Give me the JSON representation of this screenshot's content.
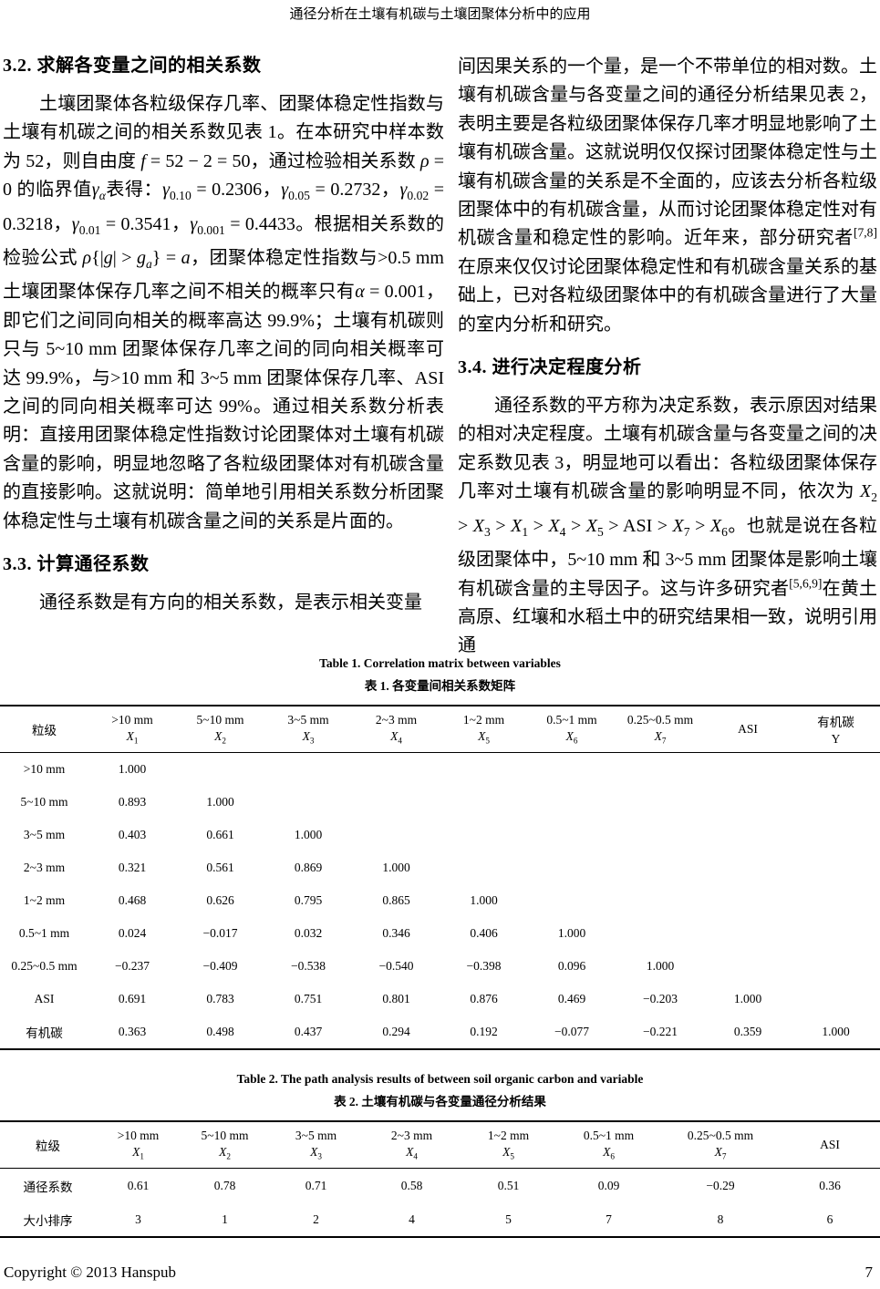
{
  "header": {
    "title": "通径分析在土壤有机碳与土壤团聚体分析中的应用"
  },
  "footer": {
    "copyright": "Copyright © 2013 Hanspub",
    "page_number": "7"
  },
  "sections": {
    "s32": {
      "heading": "3.2. 求解各变量之间的相关系数",
      "para": "土壤团聚体各粒级保存几率、团聚体稳定性指数与土壤有机碳之间的相关系数见表 1。在本研究中样本数为 52，则自由度 <i>f</i> = 52 − 2 = 50，通过检验相关系数 <i>ρ</i> = 0 的临界值<i>γ<sub>α</sub></i>表得：<i>γ</i><sub>0.10</sub> = 0.2306，<i>γ</i><sub>0.05</sub> = 0.2732，<i>γ</i><sub>0.02</sub> = 0.3218，<i>γ</i><sub>0.01</sub> = 0.3541，<i>γ</i><sub>0.001</sub> = 0.4433。根据相关系数的检验公式 <i>ρ</i>{|<i>g</i>| > <i>g<sub>a</sub></i>} = <i>a</i>，团聚体稳定性指数与>0.5 mm 土壤团聚体保存几率之间不相关的概率只有<i>α</i> = 0.001，即它们之间同向相关的概率高达 99.9%；土壤有机碳则只与 5~10 mm 团聚体保存几率之间的同向相关概率可达 99.9%，与>10 mm 和 3~5 mm 团聚体保存几率、ASI 之间的同向相关概率可达 99%。通过相关系数分析表明：直接用团聚体稳定性指数讨论团聚体对土壤有机碳含量的影响，明显地忽略了各粒级团聚体对有机碳含量的直接影响。这就说明：简单地引用相关系数分析团聚体稳定性与土壤有机碳含量之间的关系是片面的。"
    },
    "s33": {
      "heading": "3.3. 计算通径系数",
      "para": "通径系数是有方向的相关系数，是表示相关变量",
      "para_cont": "间因果关系的一个量，是一个不带单位的相对数。土壤有机碳含量与各变量之间的通径分析结果见表 2，表明主要是各粒级团聚体保存几率才明显地影响了土壤有机碳含量。这就说明仅仅探讨团聚体稳定性与土壤有机碳含量的关系是不全面的，应该去分析各粒级团聚体中的有机碳含量，从而讨论团聚体稳定性对有机碳含量和稳定性的影响。近年来，部分研究者<sup>[7,8]</sup>在原来仅仅讨论团聚体稳定性和有机碳含量关系的基础上，已对各粒级团聚体中的有机碳含量进行了大量的室内分析和研究。"
    },
    "s34": {
      "heading": "3.4. 进行决定程度分析",
      "para": "通径系数的平方称为决定系数，表示原因对结果的相对决定程度。土壤有机碳含量与各变量之间的决定系数见表 3，明显地可以看出：各粒级团聚体保存几率对土壤有机碳含量的影响明显不同，依次为 <i>X</i><sub>2</sub> > <i>X</i><sub>3</sub> > <i>X</i><sub>1</sub> > <i>X</i><sub>4</sub> > <i>X</i><sub>5</sub> > ASI > <i>X</i><sub>7</sub> > <i>X</i><sub>6</sub>。也就是说在各粒级团聚体中，5~10 mm 和 3~5 mm 团聚体是影响土壤有机碳含量的主导因子。这与许多研究者<sup>[5,6,9]</sup>在黄土高原、红壤和水稻土中的研究结果相一致，说明引用通"
    }
  },
  "table1": {
    "caption_en": "Table 1. Correlation matrix between variables",
    "caption_zh": "表 1.  各变量间相关系数矩阵",
    "header_label": "粒级",
    "columns": [
      {
        "line1": ">10 mm",
        "line2_html": "<i>X</i><sub>1</sub>"
      },
      {
        "line1": "5~10 mm",
        "line2_html": "<i>X</i><sub>2</sub>"
      },
      {
        "line1": "3~5 mm",
        "line2_html": "<i>X</i><sub>3</sub>"
      },
      {
        "line1": "2~3 mm",
        "line2_html": "<i>X</i><sub>4</sub>"
      },
      {
        "line1": "1~2 mm",
        "line2_html": "<i>X</i><sub>5</sub>"
      },
      {
        "line1": "0.5~1 mm",
        "line2_html": "<i>X</i><sub>6</sub>"
      },
      {
        "line1": "0.25~0.5 mm",
        "line2_html": "<i>X</i><sub>7</sub>"
      },
      {
        "line1": "ASI"
      },
      {
        "line1": "有机碳",
        "line2_html": "Y"
      }
    ],
    "rows": [
      {
        "label": ">10 mm",
        "values": [
          "1.000"
        ]
      },
      {
        "label": "5~10 mm",
        "values": [
          "0.893",
          "1.000"
        ]
      },
      {
        "label": "3~5 mm",
        "values": [
          "0.403",
          "0.661",
          "1.000"
        ]
      },
      {
        "label": "2~3 mm",
        "values": [
          "0.321",
          "0.561",
          "0.869",
          "1.000"
        ]
      },
      {
        "label": "1~2 mm",
        "values": [
          "0.468",
          "0.626",
          "0.795",
          "0.865",
          "1.000"
        ]
      },
      {
        "label": "0.5~1 mm",
        "values": [
          "0.024",
          "−0.017",
          "0.032",
          "0.346",
          "0.406",
          "1.000"
        ]
      },
      {
        "label": "0.25~0.5 mm",
        "values": [
          "−0.237",
          "−0.409",
          "−0.538",
          "−0.540",
          "−0.398",
          "0.096",
          "1.000"
        ]
      },
      {
        "label": "ASI",
        "values": [
          "0.691",
          "0.783",
          "0.751",
          "0.801",
          "0.876",
          "0.469",
          "−0.203",
          "1.000"
        ]
      },
      {
        "label": "有机碳",
        "values": [
          "0.363",
          "0.498",
          "0.437",
          "0.294",
          "0.192",
          "−0.077",
          "−0.221",
          "0.359",
          "1.000"
        ]
      }
    ]
  },
  "table2": {
    "caption_en": "Table 2. The path analysis results of between soil organic carbon and variable",
    "caption_zh": "表 2.  土壤有机碳与各变量通径分析结果",
    "header_label": "粒级",
    "columns": [
      {
        "line1": ">10 mm",
        "line2_html": "<i>X</i><sub>1</sub>"
      },
      {
        "line1": "5~10 mm",
        "line2_html": "<i>X</i><sub>2</sub>"
      },
      {
        "line1": "3~5 mm",
        "line2_html": "<i>X</i><sub>3</sub>"
      },
      {
        "line1": "2~3 mm",
        "line2_html": "<i>X</i><sub>4</sub>"
      },
      {
        "line1": "1~2 mm",
        "line2_html": "<i>X</i><sub>5</sub>"
      },
      {
        "line1": "0.5~1 mm",
        "line2_html": "<i>X</i><sub>6</sub>"
      },
      {
        "line1": "0.25~0.5 mm",
        "line2_html": "<i>X</i><sub>7</sub>"
      },
      {
        "line1": "ASI"
      }
    ],
    "rows": [
      {
        "label": "通径系数",
        "values": [
          "0.61",
          "0.78",
          "0.71",
          "0.58",
          "0.51",
          "0.09",
          "−0.29",
          "0.36"
        ]
      },
      {
        "label": "大小排序",
        "values": [
          "3",
          "1",
          "2",
          "4",
          "5",
          "7",
          "8",
          "6"
        ]
      }
    ]
  }
}
